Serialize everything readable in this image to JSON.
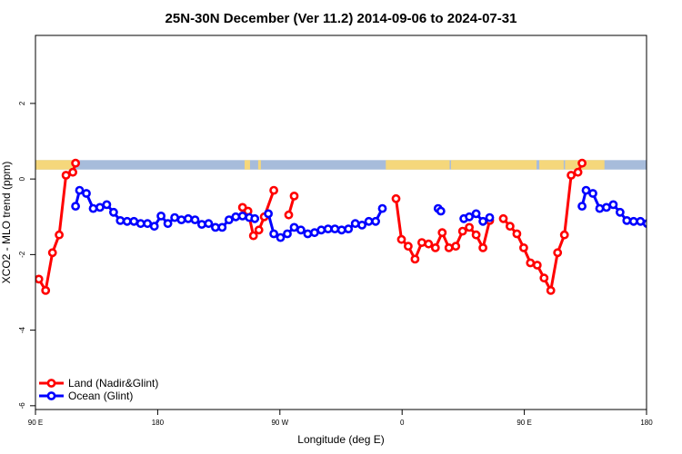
{
  "chart_data": {
    "type": "line",
    "title": "25N-30N December (Ver 11.2)   2014-09-06 to 2024-07-31",
    "xlabel": "Longitude (deg E)",
    "ylabel": "XCO2 - MLO trend (ppm)",
    "xlim": [
      90,
      540
    ],
    "ylim": [
      -6.1,
      3.8
    ],
    "x_ticks": [
      {
        "value": 90,
        "label": "90 E"
      },
      {
        "value": 180,
        "label": "180"
      },
      {
        "value": 270,
        "label": "90 W"
      },
      {
        "value": 360,
        "label": "0"
      },
      {
        "value": 450,
        "label": "90 E"
      },
      {
        "value": 540,
        "label": "180"
      }
    ],
    "y_ticks": [
      {
        "value": 2,
        "label": "2"
      },
      {
        "value": 0,
        "label": "0"
      },
      {
        "value": -2,
        "label": "-2"
      },
      {
        "value": -4,
        "label": "-4"
      },
      {
        "value": -6,
        "label": "-6"
      }
    ],
    "grid": false,
    "legend_position": "bottom-left",
    "surface_band": {
      "y_range": [
        0.25,
        0.5
      ],
      "ocean_color": "#a7bcdb",
      "land_color": "#f5d77b",
      "land_segments": [
        [
          90,
          119
        ],
        [
          244,
          248
        ],
        [
          254,
          256
        ],
        [
          348,
          395
        ],
        [
          396,
          459
        ],
        [
          461,
          479
        ],
        [
          480,
          509
        ]
      ]
    },
    "series": [
      {
        "name": "Land (Nadir&Glint)",
        "color": "#ff0000",
        "segments": [
          [
            [
              92.5,
              -2.65
            ],
            [
              97.5,
              -2.95
            ],
            [
              102.5,
              -1.95
            ],
            [
              107.5,
              -1.48
            ],
            [
              112.5,
              0.1
            ],
            [
              117.5,
              0.18
            ],
            [
              119.5,
              0.42
            ]
          ],
          [
            [
              242.5,
              -0.75
            ],
            [
              246.5,
              -0.85
            ],
            [
              250.5,
              -1.5
            ],
            [
              254.5,
              -1.35
            ],
            [
              258.5,
              -1.0
            ],
            [
              265.5,
              -0.3
            ]
          ],
          [
            [
              276.5,
              -0.95
            ],
            [
              280.5,
              -0.45
            ]
          ],
          [
            [
              355.5,
              -0.52
            ],
            [
              359.5,
              -1.6
            ],
            [
              364.5,
              -1.78
            ],
            [
              369.5,
              -2.12
            ],
            [
              374.5,
              -1.68
            ],
            [
              379.5,
              -1.72
            ],
            [
              384.5,
              -1.82
            ],
            [
              389.5,
              -1.42
            ],
            [
              394.5,
              -1.82
            ],
            [
              399.5,
              -1.78
            ],
            [
              404.5,
              -1.38
            ],
            [
              409.5,
              -1.28
            ],
            [
              414.5,
              -1.48
            ],
            [
              419.5,
              -1.82
            ],
            [
              424.5,
              -1.1
            ]
          ],
          [
            [
              434.5,
              -1.05
            ],
            [
              439.5,
              -1.25
            ],
            [
              444.5,
              -1.45
            ],
            [
              449.5,
              -1.82
            ],
            [
              454.5,
              -2.22
            ],
            [
              459.5,
              -2.28
            ],
            [
              464.5,
              -2.62
            ],
            [
              469.5,
              -2.95
            ],
            [
              474.5,
              -1.95
            ],
            [
              479.5,
              -1.48
            ],
            [
              484.5,
              0.1
            ],
            [
              489.5,
              0.18
            ],
            [
              492.5,
              0.42
            ]
          ]
        ]
      },
      {
        "name": "Ocean (Glint)",
        "color": "#0000ff",
        "segments": [
          [
            [
              119.5,
              -0.72
            ],
            [
              122.5,
              -0.3
            ],
            [
              127.5,
              -0.38
            ],
            [
              132.5,
              -0.78
            ],
            [
              137.5,
              -0.75
            ],
            [
              142.5,
              -0.68
            ],
            [
              147.5,
              -0.88
            ],
            [
              152.5,
              -1.1
            ],
            [
              157.5,
              -1.12
            ],
            [
              162.5,
              -1.12
            ],
            [
              167.5,
              -1.18
            ],
            [
              172.5,
              -1.18
            ],
            [
              177.5,
              -1.25
            ],
            [
              182.5,
              -0.98
            ],
            [
              187.5,
              -1.18
            ],
            [
              192.5,
              -1.02
            ],
            [
              197.5,
              -1.08
            ],
            [
              202.5,
              -1.05
            ],
            [
              207.5,
              -1.08
            ],
            [
              212.5,
              -1.2
            ],
            [
              217.5,
              -1.18
            ],
            [
              222.5,
              -1.28
            ],
            [
              227.5,
              -1.28
            ],
            [
              232.5,
              -1.08
            ],
            [
              237.5,
              -1.0
            ],
            [
              242.5,
              -0.98
            ],
            [
              247.5,
              -1.02
            ],
            [
              251.5,
              -1.05
            ]
          ],
          [
            [
              261.5,
              -0.92
            ],
            [
              265.5,
              -1.45
            ],
            [
              270.5,
              -1.55
            ],
            [
              275.5,
              -1.45
            ],
            [
              280.5,
              -1.28
            ],
            [
              285.5,
              -1.35
            ],
            [
              290.5,
              -1.45
            ],
            [
              295.5,
              -1.42
            ],
            [
              300.5,
              -1.35
            ],
            [
              305.5,
              -1.32
            ],
            [
              310.5,
              -1.32
            ],
            [
              315.5,
              -1.35
            ],
            [
              320.5,
              -1.32
            ],
            [
              325.5,
              -1.18
            ],
            [
              330.5,
              -1.22
            ],
            [
              335.5,
              -1.12
            ],
            [
              340.5,
              -1.12
            ],
            [
              345.5,
              -0.78
            ]
          ],
          [
            [
              386.5,
              -0.78
            ],
            [
              388.5,
              -0.85
            ]
          ],
          [
            [
              405.5,
              -1.05
            ],
            [
              409.5,
              -1.0
            ],
            [
              414.5,
              -0.92
            ],
            [
              419.5,
              -1.12
            ],
            [
              424.5,
              -1.02
            ]
          ],
          [
            [
              492.5,
              -0.72
            ],
            [
              495.5,
              -0.3
            ],
            [
              500.5,
              -0.38
            ],
            [
              505.5,
              -0.78
            ],
            [
              510.5,
              -0.75
            ],
            [
              515.5,
              -0.68
            ],
            [
              520.5,
              -0.88
            ],
            [
              525.5,
              -1.1
            ],
            [
              530.5,
              -1.12
            ],
            [
              535.5,
              -1.12
            ],
            [
              540.5,
              -1.18
            ],
            [
              545.5,
              -1.25
            ]
          ]
        ]
      }
    ]
  }
}
